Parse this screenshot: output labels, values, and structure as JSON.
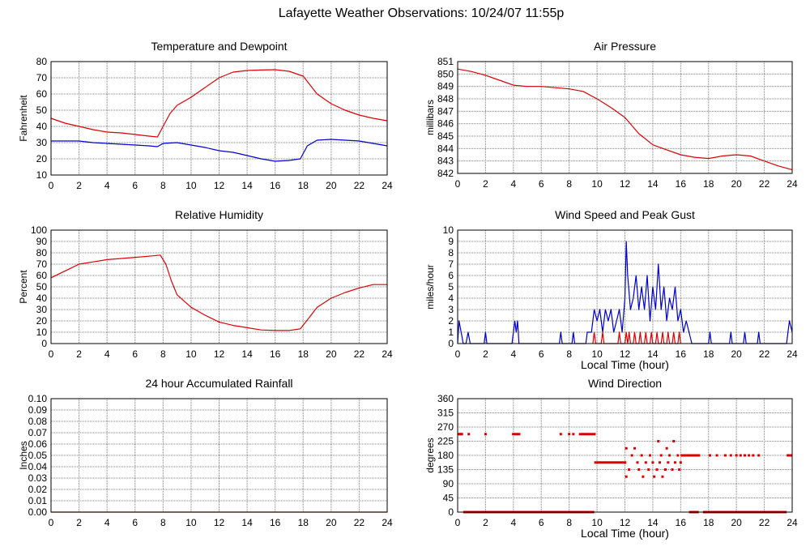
{
  "page": {
    "title": "Lafayette Weather Observations: 10/24/07 11:55p"
  },
  "colors": {
    "red": "#dd0000",
    "blue": "#0000cc",
    "grid": "#808080"
  },
  "chart_data": [
    {
      "id": "temp",
      "type": "line",
      "title": "Temperature and Dewpoint",
      "xlabel": "",
      "ylabel": "Fahrenheit",
      "xlim": [
        0,
        24
      ],
      "ylim": [
        10,
        80
      ],
      "xticks": [
        0,
        2,
        4,
        6,
        8,
        10,
        12,
        14,
        16,
        18,
        20,
        22,
        24
      ],
      "yticks": [
        10,
        20,
        30,
        40,
        50,
        60,
        70,
        80
      ],
      "series": [
        {
          "color": "red",
          "x": [
            0,
            1,
            2,
            3,
            4,
            5,
            6,
            7,
            7.6,
            8,
            8.5,
            9,
            10,
            11,
            12,
            13,
            14,
            15,
            16,
            17,
            18,
            19,
            20,
            21,
            22,
            23,
            24
          ],
          "y": [
            45,
            42,
            40,
            38,
            36.5,
            36,
            35,
            34,
            33.5,
            40,
            48,
            53,
            58,
            64,
            70,
            73.5,
            74.5,
            74.8,
            75,
            74,
            71,
            60,
            54,
            50,
            47,
            45,
            43.5
          ]
        },
        {
          "color": "blue",
          "x": [
            0,
            1,
            2,
            3,
            4,
            5,
            6,
            7,
            7.6,
            8,
            9,
            10,
            11,
            12,
            13,
            14,
            15,
            16,
            17,
            17.8,
            18.3,
            19,
            20,
            21,
            22,
            23,
            24
          ],
          "y": [
            31,
            31,
            31,
            30,
            29.5,
            29,
            28.5,
            28,
            27.5,
            29.5,
            30,
            28.5,
            27,
            25,
            24,
            22,
            20,
            18.5,
            19,
            20,
            28,
            31.5,
            32,
            31.5,
            31,
            29.5,
            28
          ]
        }
      ]
    },
    {
      "id": "pressure",
      "type": "line",
      "title": "Air Pressure",
      "xlabel": "",
      "ylabel": "millibars",
      "xlim": [
        0,
        24
      ],
      "ylim": [
        842,
        851
      ],
      "xticks": [
        0,
        2,
        4,
        6,
        8,
        10,
        12,
        14,
        16,
        18,
        20,
        22,
        24
      ],
      "yticks": [
        842,
        843,
        844,
        845,
        846,
        847,
        848,
        849,
        850,
        851
      ],
      "series": [
        {
          "color": "red",
          "x": [
            0,
            1,
            2,
            3,
            4,
            5,
            6,
            7,
            8,
            9,
            10,
            11,
            12,
            13,
            14,
            15,
            16,
            17,
            18,
            19,
            20,
            21,
            22,
            23,
            24
          ],
          "y": [
            850.4,
            850.2,
            849.9,
            849.5,
            849.1,
            849.0,
            849.0,
            848.9,
            848.8,
            848.6,
            848.0,
            847.3,
            846.5,
            845.2,
            844.3,
            843.9,
            843.5,
            843.3,
            843.2,
            843.4,
            843.5,
            843.4,
            843.0,
            842.6,
            842.3
          ]
        }
      ]
    },
    {
      "id": "humidity",
      "type": "line",
      "title": "Relative Humidity",
      "xlabel": "",
      "ylabel": "Percent",
      "xlim": [
        0,
        24
      ],
      "ylim": [
        0,
        100
      ],
      "xticks": [
        0,
        2,
        4,
        6,
        8,
        10,
        12,
        14,
        16,
        18,
        20,
        22,
        24
      ],
      "yticks": [
        0,
        10,
        20,
        30,
        40,
        50,
        60,
        70,
        80,
        90,
        100
      ],
      "series": [
        {
          "color": "red",
          "x": [
            0,
            1,
            2,
            3,
            4,
            5,
            6,
            7,
            7.8,
            8.2,
            8.6,
            9,
            10,
            11,
            12,
            13,
            14,
            15,
            16,
            17,
            17.8,
            18.5,
            19,
            20,
            21,
            22,
            23,
            24
          ],
          "y": [
            58,
            64,
            70,
            72,
            74,
            75,
            76,
            77,
            78,
            70,
            55,
            43,
            32,
            25,
            19,
            16,
            14,
            12,
            11.5,
            11.5,
            13,
            24,
            32,
            40,
            45,
            49,
            52,
            52
          ]
        }
      ]
    },
    {
      "id": "wind",
      "type": "line",
      "title": "Wind Speed and Peak Gust",
      "xlabel": "Local Time (hour)",
      "ylabel": "miles/hour",
      "xlim": [
        0,
        24
      ],
      "ylim": [
        0,
        10
      ],
      "xticks": [
        0,
        2,
        4,
        6,
        8,
        10,
        12,
        14,
        16,
        18,
        20,
        22,
        24
      ],
      "yticks": [
        0,
        1,
        2,
        3,
        4,
        5,
        6,
        7,
        8,
        9,
        10
      ],
      "series": [
        {
          "color": "blue",
          "x": [
            0,
            0.1,
            0.25,
            0.4,
            0.6,
            0.75,
            0.9,
            1.9,
            2,
            2.1,
            3.9,
            4,
            4.1,
            4.2,
            4.3,
            4.4,
            7.3,
            7.4,
            7.5,
            8.2,
            8.3,
            8.4,
            9.2,
            9.3,
            9.6,
            9.8,
            10,
            10.2,
            10.4,
            10.6,
            10.8,
            11,
            11.2,
            11.4,
            11.6,
            11.8,
            12,
            12.1,
            12.2,
            12.4,
            12.6,
            12.8,
            13,
            13.2,
            13.4,
            13.6,
            13.8,
            14,
            14.2,
            14.4,
            14.6,
            14.8,
            15,
            15.2,
            15.4,
            15.6,
            15.8,
            16,
            16.2,
            16.4,
            16.6,
            16.8,
            18,
            18.1,
            18.2,
            19.5,
            19.6,
            19.7,
            20.5,
            20.6,
            20.7,
            21.5,
            21.6,
            21.7,
            23.6,
            23.7,
            23.8,
            24
          ],
          "y": [
            0,
            2,
            1,
            0,
            0,
            1,
            0,
            0,
            1,
            0,
            0,
            1,
            2,
            1,
            2,
            0,
            0,
            1,
            0,
            0,
            1,
            0,
            0,
            1,
            1,
            3,
            2,
            3,
            1,
            3,
            2,
            3,
            1,
            2,
            3,
            1,
            4,
            9,
            6,
            3,
            4,
            6,
            3,
            5,
            3,
            6,
            2,
            5,
            3,
            7,
            3,
            5,
            2,
            4,
            3,
            5,
            2,
            3,
            1,
            2,
            1,
            0,
            0,
            1,
            0,
            0,
            1,
            0,
            0,
            1,
            0,
            0,
            1,
            0,
            0,
            1,
            2,
            1
          ]
        },
        {
          "color": "red",
          "x": [
            9.7,
            9.8,
            9.9,
            10.3,
            10.4,
            10.5,
            11.5,
            11.6,
            11.7,
            12,
            12.1,
            12.2,
            12.3,
            12.4,
            12.6,
            12.7,
            12.8,
            13,
            13.1,
            13.2,
            13.4,
            13.5,
            13.6,
            13.8,
            13.9,
            14,
            14.2,
            14.3,
            14.4,
            14.6,
            14.7,
            14.8,
            15,
            15.1,
            15.2,
            15.4,
            15.5,
            15.6,
            15.8,
            15.9,
            16
          ],
          "y": [
            0,
            1,
            0,
            0,
            1,
            0,
            0,
            1,
            0,
            0,
            1,
            0,
            1,
            0,
            0,
            1,
            0,
            0,
            1,
            0,
            0,
            1,
            0,
            0,
            1,
            0,
            0,
            1,
            0,
            0,
            1,
            0,
            0,
            1,
            0,
            0,
            1,
            0,
            0,
            1,
            0
          ]
        }
      ]
    },
    {
      "id": "rain",
      "type": "line",
      "title": "24 hour Accumulated Rainfall",
      "xlabel": "",
      "ylabel": "Inches",
      "xlim": [
        0,
        24
      ],
      "ylim": [
        0,
        0.1
      ],
      "xticks": [
        0,
        2,
        4,
        6,
        8,
        10,
        12,
        14,
        16,
        18,
        20,
        22,
        24
      ],
      "yticks": [
        "0.00",
        "0.01",
        "0.02",
        "0.03",
        "0.04",
        "0.05",
        "0.06",
        "0.07",
        "0.08",
        "0.09",
        "0.10"
      ],
      "series": [
        {
          "color": "red",
          "x": [
            0,
            24
          ],
          "y": [
            0,
            0
          ]
        }
      ]
    },
    {
      "id": "winddir",
      "type": "scatter",
      "title": "Wind Direction",
      "xlabel": "Local Time (hour)",
      "ylabel": "degrees",
      "xlim": [
        0,
        24
      ],
      "ylim": [
        0,
        360
      ],
      "xticks": [
        0,
        2,
        4,
        6,
        8,
        10,
        12,
        14,
        16,
        18,
        20,
        22,
        24
      ],
      "yticks": [
        0,
        45,
        90,
        135,
        180,
        225,
        270,
        315,
        360
      ],
      "series": [
        {
          "color": "red",
          "segments": [
            {
              "x0": 0.4,
              "x1": 9.8,
              "y": 0
            },
            {
              "x0": 16.6,
              "x1": 17.3,
              "y": 0
            },
            {
              "x0": 17.6,
              "x1": 23.6,
              "y": 0
            },
            {
              "x0": 9.8,
              "x1": 12.1,
              "y": 157.5
            },
            {
              "x0": 16.0,
              "x1": 17.4,
              "y": 180
            },
            {
              "x0": 23.6,
              "x1": 24,
              "y": 180
            },
            {
              "x0": 3.9,
              "x1": 4.5,
              "y": 247.5
            },
            {
              "x0": 8.7,
              "x1": 9.9,
              "y": 247.5
            }
          ],
          "points": [
            [
              0.1,
              247.5
            ],
            [
              0.2,
              247.5
            ],
            [
              0.3,
              247.5
            ],
            [
              0.8,
              247.5
            ],
            [
              2,
              247.5
            ],
            [
              7.4,
              247.5
            ],
            [
              8.0,
              247.5
            ],
            [
              8.3,
              247.5
            ],
            [
              12.1,
              202.5
            ],
            [
              12.1,
              112.5
            ],
            [
              12.3,
              135
            ],
            [
              12.5,
              180
            ],
            [
              12.7,
              202.5
            ],
            [
              12.9,
              157.5
            ],
            [
              13.0,
              135
            ],
            [
              13.2,
              180
            ],
            [
              13.3,
              112.5
            ],
            [
              13.5,
              157.5
            ],
            [
              13.7,
              135
            ],
            [
              13.8,
              180
            ],
            [
              14.0,
              157.5
            ],
            [
              14.1,
              112.5
            ],
            [
              14.3,
              135
            ],
            [
              14.4,
              225
            ],
            [
              14.5,
              157.5
            ],
            [
              14.6,
              180
            ],
            [
              14.7,
              112.5
            ],
            [
              14.9,
              135
            ],
            [
              15.0,
              202.5
            ],
            [
              15.1,
              157.5
            ],
            [
              15.2,
              180
            ],
            [
              15.4,
              135
            ],
            [
              15.5,
              225
            ],
            [
              15.6,
              157.5
            ],
            [
              15.8,
              180
            ],
            [
              15.9,
              135
            ],
            [
              16.0,
              157.5
            ],
            [
              18.1,
              180
            ],
            [
              18.6,
              180
            ],
            [
              19.2,
              180
            ],
            [
              19.6,
              180
            ],
            [
              20.0,
              180
            ],
            [
              20.3,
              180
            ],
            [
              20.6,
              180
            ],
            [
              20.9,
              180
            ],
            [
              21.2,
              180
            ],
            [
              21.6,
              180
            ]
          ]
        }
      ]
    }
  ]
}
